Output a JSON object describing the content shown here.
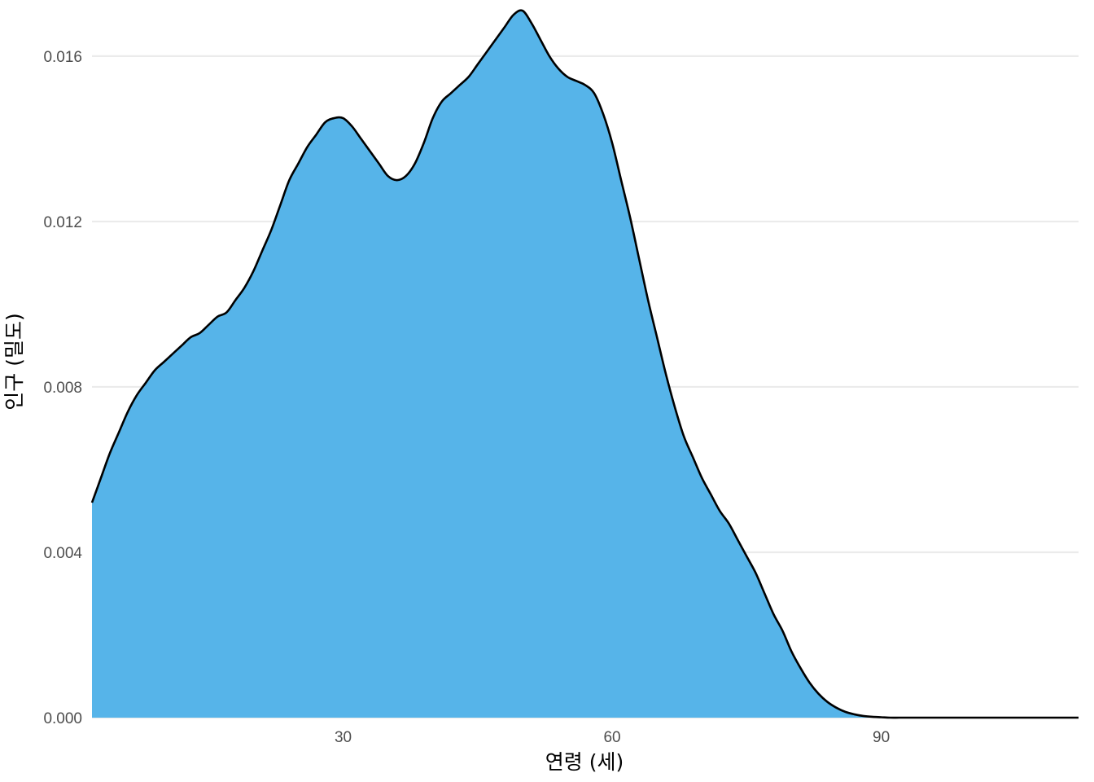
{
  "chart_data": {
    "type": "area",
    "title": "",
    "xlabel": "연령 (세)",
    "ylabel": "인구 (밀도)",
    "xlim": [
      2,
      112
    ],
    "ylim": [
      0,
      0.0172
    ],
    "x_ticks": [
      30,
      60,
      90
    ],
    "x_tick_labels": [
      "30",
      "60",
      "90"
    ],
    "y_ticks": [
      0,
      0.004,
      0.008,
      0.012,
      0.016
    ],
    "y_tick_labels": [
      "0.000",
      "0.004",
      "0.008",
      "0.012",
      "0.016"
    ],
    "grid": true,
    "legend": "none",
    "series": [
      {
        "fill": "#56B4E9",
        "stroke": "#000000",
        "x": [
          2,
          3,
          4,
          5,
          6,
          7,
          8,
          9,
          10,
          11,
          12,
          13,
          14,
          15,
          16,
          17,
          18,
          19,
          20,
          21,
          22,
          23,
          24,
          25,
          26,
          27,
          28,
          29,
          30,
          31,
          32,
          33,
          34,
          35,
          36,
          37,
          38,
          39,
          40,
          41,
          42,
          43,
          44,
          45,
          46,
          47,
          48,
          49,
          50,
          51,
          52,
          53,
          54,
          55,
          56,
          57,
          58,
          59,
          60,
          61,
          62,
          63,
          64,
          65,
          66,
          67,
          68,
          69,
          70,
          71,
          72,
          73,
          74,
          75,
          76,
          77,
          78,
          79,
          80,
          81,
          82,
          83,
          84,
          85,
          86,
          87,
          88,
          89,
          90,
          91,
          92,
          93,
          94,
          95,
          96,
          97,
          98,
          99,
          100,
          101,
          102,
          103,
          104,
          105,
          106,
          107,
          108,
          109,
          110,
          111,
          112
        ],
        "y": [
          0.0052,
          0.0058,
          0.0064,
          0.0069,
          0.0074,
          0.0078,
          0.0081,
          0.0084,
          0.0086,
          0.0088,
          0.009,
          0.0092,
          0.0093,
          0.0095,
          0.0097,
          0.0098,
          0.0101,
          0.0104,
          0.0108,
          0.0113,
          0.0118,
          0.0124,
          0.013,
          0.0134,
          0.0138,
          0.0141,
          0.0144,
          0.0145,
          0.0145,
          0.0143,
          0.014,
          0.0137,
          0.0134,
          0.0131,
          0.013,
          0.0131,
          0.0134,
          0.0139,
          0.0145,
          0.0149,
          0.0151,
          0.0153,
          0.0155,
          0.0158,
          0.0161,
          0.0164,
          0.0167,
          0.017,
          0.0171,
          0.0168,
          0.0164,
          0.016,
          0.0157,
          0.0155,
          0.0154,
          0.0153,
          0.0151,
          0.0146,
          0.0139,
          0.013,
          0.0121,
          0.0111,
          0.0101,
          0.0092,
          0.0083,
          0.0075,
          0.0068,
          0.0063,
          0.0058,
          0.0054,
          0.005,
          0.0047,
          0.0043,
          0.0039,
          0.0035,
          0.003,
          0.0025,
          0.0021,
          0.0016,
          0.0012,
          0.00085,
          0.00058,
          0.00038,
          0.00024,
          0.00014,
          8e-05,
          4e-05,
          2e-05,
          1e-05,
          0.0,
          0.0,
          0.0,
          0.0,
          0.0,
          0.0,
          0.0,
          0.0,
          0.0,
          0.0,
          0.0,
          0.0,
          0.0,
          0.0,
          0.0,
          0.0,
          0.0,
          0.0,
          0.0,
          0.0,
          0.0,
          0.0
        ]
      }
    ]
  }
}
